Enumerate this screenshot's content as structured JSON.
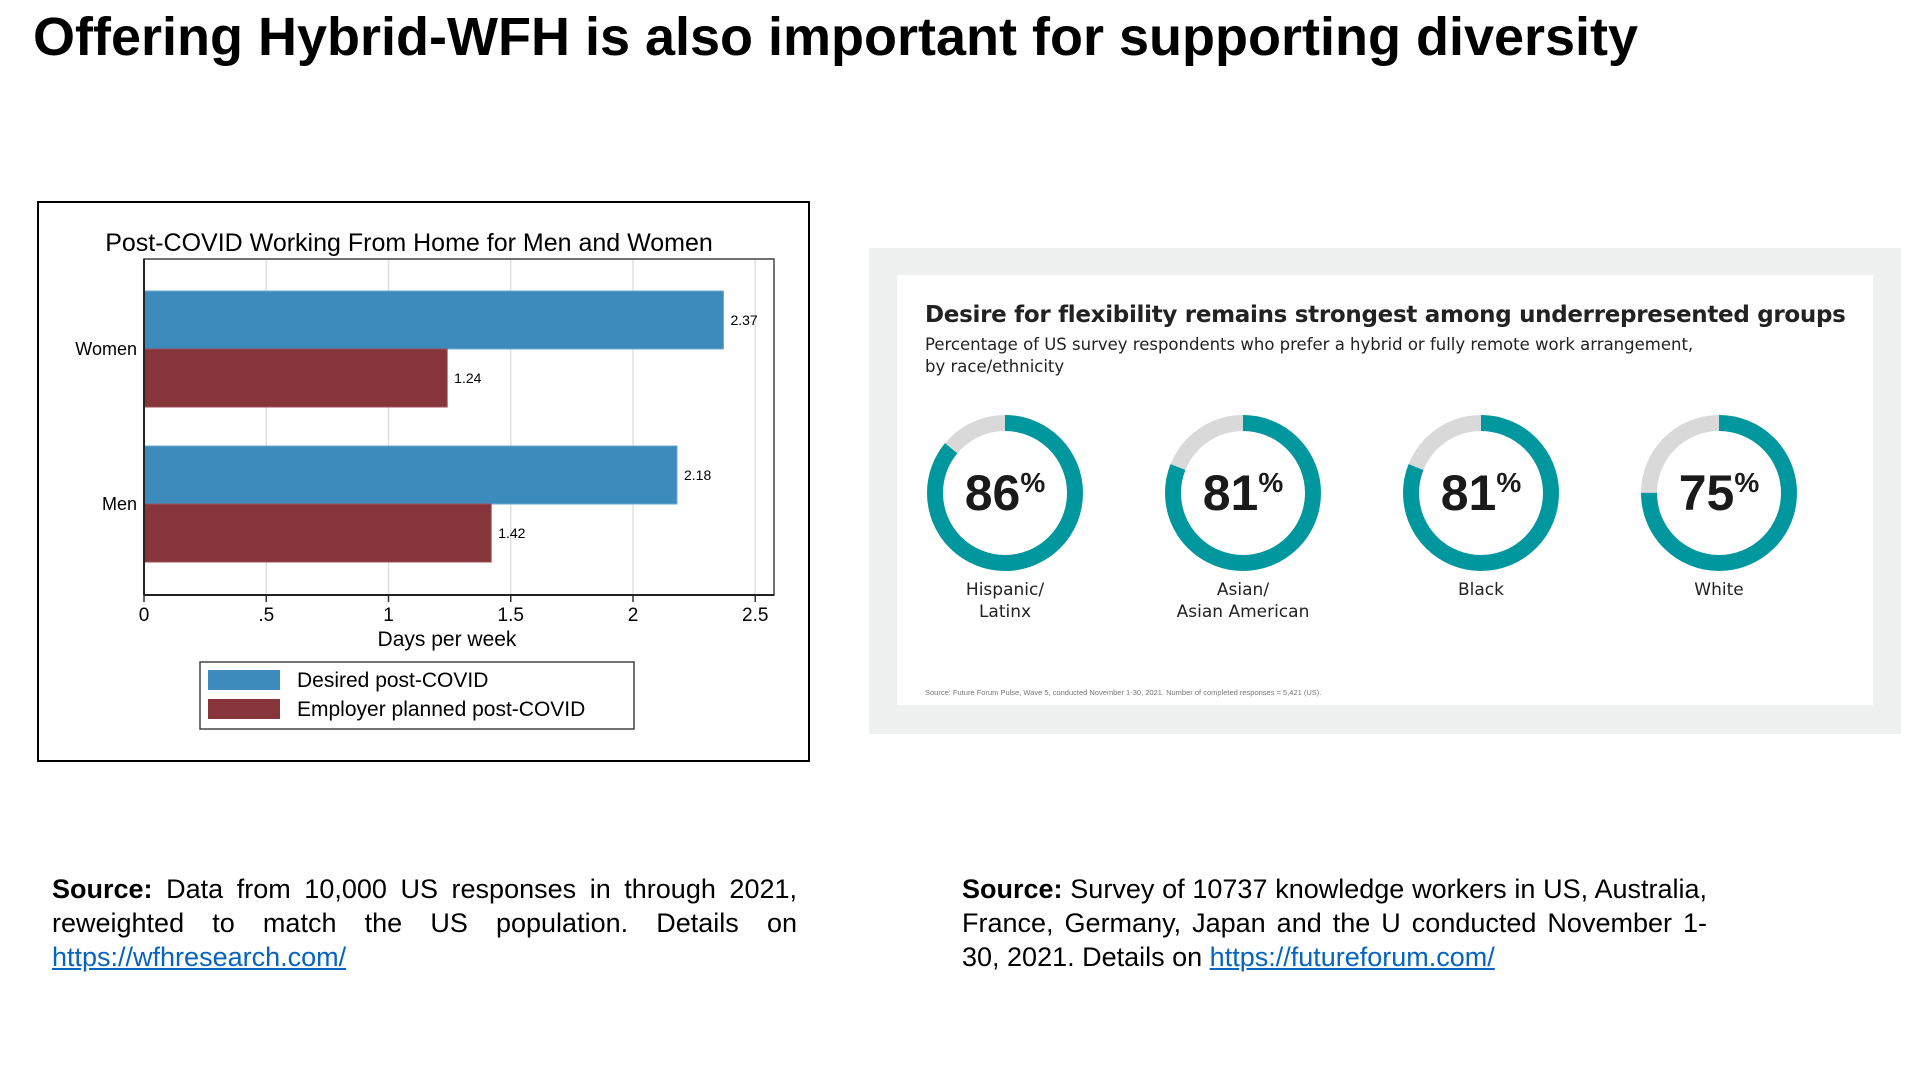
{
  "slide": {
    "title": "Offering Hybrid-WFH is also important for supporting diversity",
    "left_source": {
      "label": "Source:",
      "text": " Data from 10,000 US responses in through 2021, reweighted to match the US population. Details on ",
      "link": "https://wfhresearch.com/"
    },
    "right_source": {
      "label": "Source:",
      "text": " Survey of 10737 knowledge workers in US, Australia, France, Germany, Japan and the U conducted November 1-30, 2021. Details on ",
      "link": "https://futureforum.com/"
    }
  },
  "colors": {
    "desired": "#3c8bbc",
    "planned": "#86353b",
    "teal": "#00979f",
    "donut_rest": "#d9d9d9"
  },
  "chart_data": [
    {
      "type": "bar",
      "orientation": "horizontal",
      "title": "Post-COVID Working From Home for Men and Women",
      "xlabel": "Days per week",
      "ylabel": "",
      "categories": [
        "Women",
        "Men"
      ],
      "series": [
        {
          "name": "Desired post-COVID",
          "values": [
            2.37,
            2.18
          ]
        },
        {
          "name": "Employer planned post-COVID",
          "values": [
            1.24,
            1.42
          ]
        }
      ],
      "value_labels": [
        [
          "2.37",
          "2.18"
        ],
        [
          "1.24",
          "1.42"
        ]
      ],
      "xlim": [
        0,
        2.55
      ],
      "xticks": [
        0,
        0.5,
        1,
        1.5,
        2,
        2.5
      ],
      "xtick_labels": [
        "0",
        ".5",
        "1",
        "1.5",
        "2",
        "2.5"
      ],
      "grid": true,
      "legend_position": "bottom"
    },
    {
      "type": "pie",
      "variant": "donut",
      "title": "Desire for flexibility remains strongest among underrepresented groups",
      "subtitle_lines": [
        "Percentage of US survey respondents who prefer a hybrid or fully remote work arrangement,",
        "by race/ethnicity"
      ],
      "source": "Source: Future Forum Pulse, Wave 5, conducted November 1-30, 2021. Number of completed responses = 5,421 (US).",
      "items": [
        {
          "value": 86,
          "number": "86",
          "unit": "%",
          "label_lines": [
            "Hispanic/",
            "Latinx"
          ]
        },
        {
          "value": 81,
          "number": "81",
          "unit": "%",
          "label_lines": [
            "Asian/",
            "Asian American"
          ]
        },
        {
          "value": 81,
          "number": "81",
          "unit": "%",
          "label_lines": [
            "Black"
          ]
        },
        {
          "value": 75,
          "number": "75",
          "unit": "%",
          "label_lines": [
            "White"
          ]
        }
      ]
    }
  ]
}
